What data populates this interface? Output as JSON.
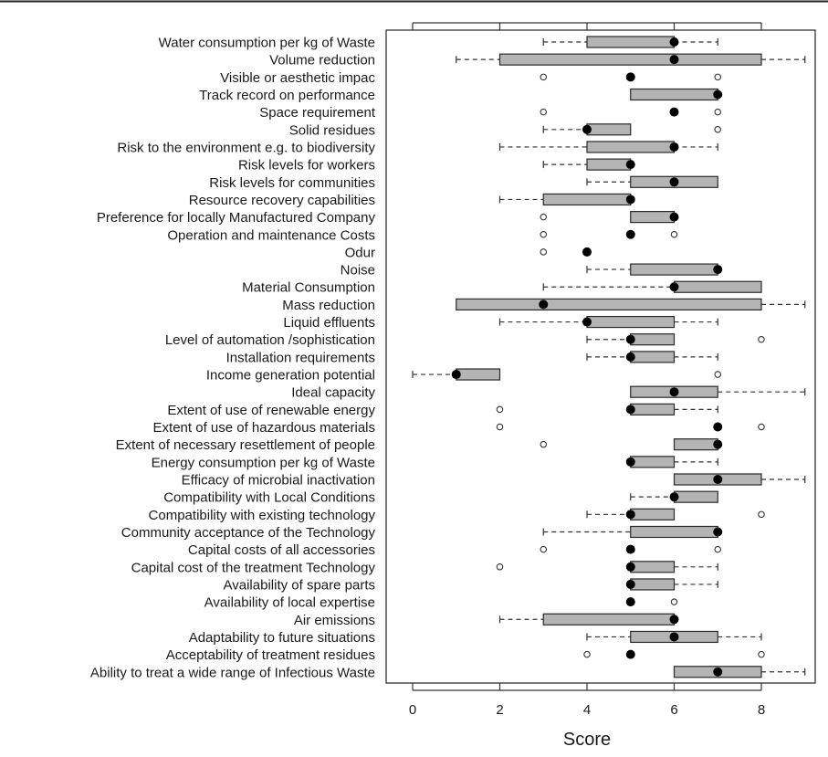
{
  "chart_data": {
    "type": "boxplot",
    "orientation": "horizontal",
    "xlabel": "Score",
    "ylabel": "",
    "xlim": [
      0,
      9
    ],
    "xticks": [
      0,
      2,
      4,
      6,
      8
    ],
    "grid": false,
    "colors": {
      "box_fill": "#b4b4b4",
      "box_stroke": "#2a2a2a",
      "median": "#000000",
      "outlier_stroke": "#333333"
    },
    "categories": [
      "Water consumption per kg of Waste",
      "Volume reduction",
      "Visible or aesthetic impac",
      "Track record on performance",
      "Space requirement",
      "Solid residues",
      "Risk to the environment e.g. to biodiversity",
      "Risk levels for workers",
      "Risk levels for communities",
      "Resource recovery capabilities",
      "Preference for locally Manufactured Company",
      "Operation and maintenance Costs",
      "Odur",
      "Noise",
      "Material Consumption",
      "Mass reduction",
      "Liquid effluents",
      "Level of automation /sophistication",
      "Installation requirements",
      "Income generation potential",
      "Ideal capacity",
      "Extent of use of renewable energy",
      "Extent of use of hazardous materials",
      "Extent of necessary resettlement of people",
      "Energy consumption per kg of Waste",
      "Efficacy of microbial inactivation",
      "Compatibility with Local Conditions",
      "Compatibility with existing technology",
      "Community acceptance of the Technology",
      "Capital costs of all accessories",
      "Capital cost of the treatment Technology",
      "Availability of spare parts",
      "Availability of local expertise",
      "Air emissions",
      "Adaptability to future situations",
      "Acceptability of treatment residues",
      "Ability to treat a wide range of Infectious Waste"
    ],
    "series": [
      {
        "whisker_low": 3,
        "q1": 4,
        "median": 6,
        "q3": 6,
        "whisker_high": 7,
        "outliers": []
      },
      {
        "whisker_low": 1,
        "q1": 2,
        "median": 6,
        "q3": 8,
        "whisker_high": 9,
        "outliers": []
      },
      {
        "whisker_low": 5,
        "q1": 5,
        "median": 5,
        "q3": 5,
        "whisker_high": 5,
        "outliers": [
          3,
          7
        ]
      },
      {
        "whisker_low": 5,
        "q1": 5,
        "median": 7,
        "q3": 7,
        "whisker_high": 7,
        "outliers": []
      },
      {
        "whisker_low": 6,
        "q1": 6,
        "median": 6,
        "q3": 6,
        "whisker_high": 6,
        "outliers": [
          3,
          7
        ]
      },
      {
        "whisker_low": 3,
        "q1": 4,
        "median": 4,
        "q3": 5,
        "whisker_high": 5,
        "outliers": [
          7
        ]
      },
      {
        "whisker_low": 2,
        "q1": 4,
        "median": 6,
        "q3": 6,
        "whisker_high": 7,
        "outliers": []
      },
      {
        "whisker_low": 3,
        "q1": 4,
        "median": 5,
        "q3": 5,
        "whisker_high": 5,
        "outliers": []
      },
      {
        "whisker_low": 4,
        "q1": 5,
        "median": 6,
        "q3": 7,
        "whisker_high": 7,
        "outliers": []
      },
      {
        "whisker_low": 2,
        "q1": 3,
        "median": 5,
        "q3": 5,
        "whisker_high": 5,
        "outliers": []
      },
      {
        "whisker_low": 5,
        "q1": 5,
        "median": 6,
        "q3": 6,
        "whisker_high": 6,
        "outliers": [
          3
        ]
      },
      {
        "whisker_low": 5,
        "q1": 5,
        "median": 5,
        "q3": 5,
        "whisker_high": 5,
        "outliers": [
          3,
          6
        ]
      },
      {
        "whisker_low": 4,
        "q1": 4,
        "median": 4,
        "q3": 4,
        "whisker_high": 4,
        "outliers": [
          3
        ]
      },
      {
        "whisker_low": 4,
        "q1": 5,
        "median": 7,
        "q3": 7,
        "whisker_high": 7,
        "outliers": []
      },
      {
        "whisker_low": 3,
        "q1": 6,
        "median": 6,
        "q3": 8,
        "whisker_high": 8,
        "outliers": []
      },
      {
        "whisker_low": 1,
        "q1": 1,
        "median": 3,
        "q3": 8,
        "whisker_high": 9,
        "outliers": []
      },
      {
        "whisker_low": 2,
        "q1": 4,
        "median": 4,
        "q3": 6,
        "whisker_high": 7,
        "outliers": []
      },
      {
        "whisker_low": 4,
        "q1": 5,
        "median": 5,
        "q3": 6,
        "whisker_high": 6,
        "outliers": [
          8
        ]
      },
      {
        "whisker_low": 4,
        "q1": 5,
        "median": 5,
        "q3": 6,
        "whisker_high": 7,
        "outliers": []
      },
      {
        "whisker_low": 0,
        "q1": 1,
        "median": 1,
        "q3": 2,
        "whisker_high": 2,
        "outliers": [
          7
        ]
      },
      {
        "whisker_low": 5,
        "q1": 5,
        "median": 6,
        "q3": 7,
        "whisker_high": 9,
        "outliers": []
      },
      {
        "whisker_low": 5,
        "q1": 5,
        "median": 5,
        "q3": 6,
        "whisker_high": 7,
        "outliers": [
          2
        ]
      },
      {
        "whisker_low": 7,
        "q1": 7,
        "median": 7,
        "q3": 7,
        "whisker_high": 7,
        "outliers": [
          2,
          8
        ]
      },
      {
        "whisker_low": 6,
        "q1": 6,
        "median": 7,
        "q3": 7,
        "whisker_high": 7,
        "outliers": [
          3
        ]
      },
      {
        "whisker_low": 5,
        "q1": 5,
        "median": 5,
        "q3": 6,
        "whisker_high": 7,
        "outliers": []
      },
      {
        "whisker_low": 6,
        "q1": 6,
        "median": 7,
        "q3": 8,
        "whisker_high": 9,
        "outliers": []
      },
      {
        "whisker_low": 5,
        "q1": 6,
        "median": 6,
        "q3": 7,
        "whisker_high": 7,
        "outliers": []
      },
      {
        "whisker_low": 4,
        "q1": 5,
        "median": 5,
        "q3": 6,
        "whisker_high": 6,
        "outliers": [
          8
        ]
      },
      {
        "whisker_low": 3,
        "q1": 5,
        "median": 7,
        "q3": 7,
        "whisker_high": 7,
        "outliers": []
      },
      {
        "whisker_low": 5,
        "q1": 5,
        "median": 5,
        "q3": 5,
        "whisker_high": 5,
        "outliers": [
          3,
          7
        ]
      },
      {
        "whisker_low": 5,
        "q1": 5,
        "median": 5,
        "q3": 6,
        "whisker_high": 7,
        "outliers": [
          2
        ]
      },
      {
        "whisker_low": 5,
        "q1": 5,
        "median": 5,
        "q3": 6,
        "whisker_high": 7,
        "outliers": []
      },
      {
        "whisker_low": 5,
        "q1": 5,
        "median": 5,
        "q3": 5,
        "whisker_high": 5,
        "outliers": [
          6
        ]
      },
      {
        "whisker_low": 2,
        "q1": 3,
        "median": 6,
        "q3": 6,
        "whisker_high": 6,
        "outliers": []
      },
      {
        "whisker_low": 4,
        "q1": 5,
        "median": 6,
        "q3": 7,
        "whisker_high": 8,
        "outliers": []
      },
      {
        "whisker_low": 5,
        "q1": 5,
        "median": 5,
        "q3": 5,
        "whisker_high": 5,
        "outliers": [
          4,
          8
        ]
      },
      {
        "whisker_low": 6,
        "q1": 6,
        "median": 7,
        "q3": 8,
        "whisker_high": 9,
        "outliers": []
      }
    ]
  }
}
